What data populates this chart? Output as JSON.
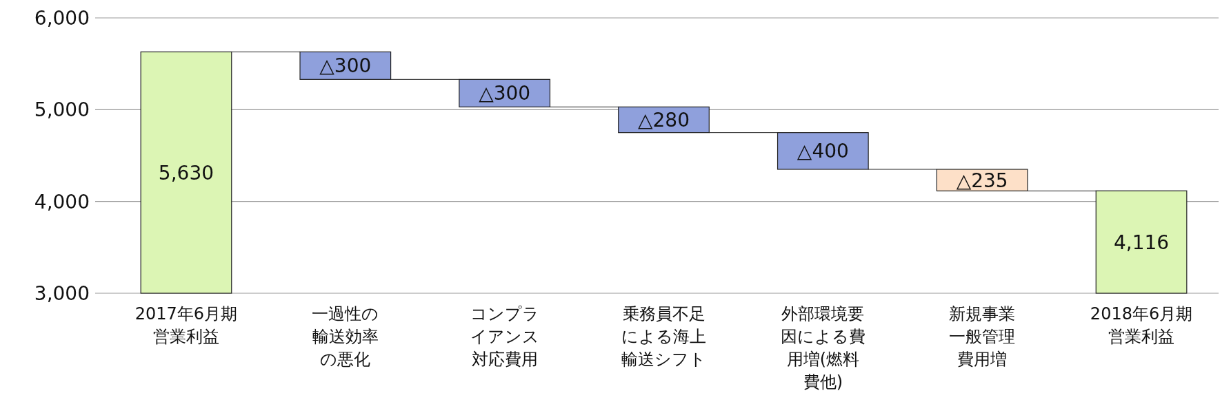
{
  "chart_data": {
    "type": "bar",
    "categories": [
      "2017年6月期営業利益",
      "一過性の輸送効率の悪化",
      "コンプライアンス対応費用",
      "乗務員不足による海上輸送シフト",
      "外部環境要因による費用増(燃料費他)",
      "新規事業一般管理費用増",
      "2018年6月期営業利益"
    ],
    "values": [
      2630,
      -300,
      -300,
      -280,
      -400,
      -235,
      1116
    ],
    "base": [
      3000,
      5630,
      5330,
      5030,
      4750,
      4350,
      3000
    ],
    "colors": [
      "#dcf5b4",
      "#8fa0dc",
      "#8fa0dc",
      "#8fa0dc",
      "#8fa0dc",
      "#fde0c8",
      "#dcf5b4"
    ],
    "value_labels": [
      "5,630",
      "△300",
      "△300",
      "△280",
      "△400",
      "△235",
      "4,116"
    ],
    "ylim": [
      3000,
      6000
    ],
    "yticks": [
      {
        "value": 3000,
        "label": "3,000"
      },
      {
        "value": 4000,
        "label": "4,000"
      },
      {
        "value": 5000,
        "label": "5,000"
      },
      {
        "value": 6000,
        "label": "6,000"
      }
    ],
    "grid": "y"
  }
}
